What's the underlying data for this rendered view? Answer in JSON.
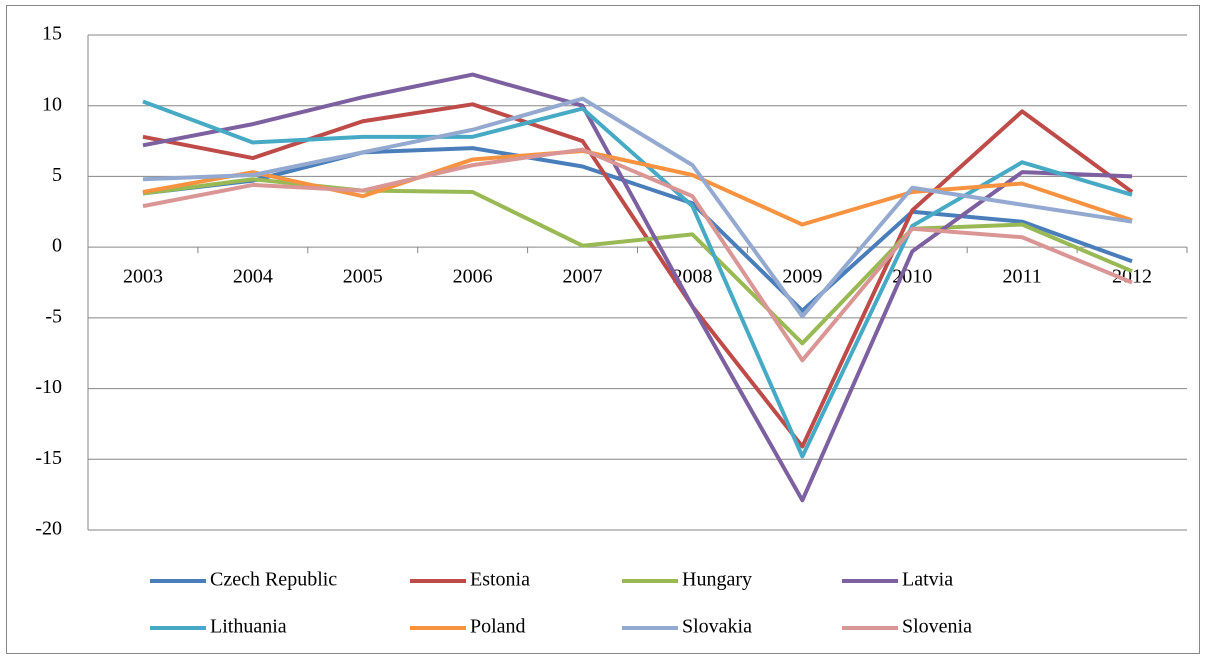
{
  "chart_data": {
    "type": "line",
    "categories": [
      "2003",
      "2004",
      "2005",
      "2006",
      "2007",
      "2008",
      "2009",
      "2010",
      "2011",
      "2012"
    ],
    "series": [
      {
        "name": "Czech Republic",
        "color": "#4a7ebb",
        "values": [
          3.8,
          4.7,
          6.7,
          7.0,
          5.7,
          3.1,
          -4.5,
          2.5,
          1.8,
          -1.0
        ]
      },
      {
        "name": "Estonia",
        "color": "#be4b48",
        "values": [
          7.8,
          6.3,
          8.9,
          10.1,
          7.5,
          -4.2,
          -14.1,
          2.6,
          9.6,
          3.9
        ]
      },
      {
        "name": "Hungary",
        "color": "#98b954",
        "values": [
          3.8,
          4.8,
          4.0,
          3.9,
          0.1,
          0.9,
          -6.8,
          1.3,
          1.6,
          -1.7
        ]
      },
      {
        "name": "Latvia",
        "color": "#7d60a0",
        "values": [
          7.2,
          8.7,
          10.6,
          12.2,
          10.0,
          -4.2,
          -17.9,
          -0.3,
          5.3,
          5.0
        ]
      },
      {
        "name": "Lithuania",
        "color": "#46aac5",
        "values": [
          10.3,
          7.4,
          7.8,
          7.8,
          9.8,
          2.9,
          -14.8,
          1.5,
          6.0,
          3.7
        ]
      },
      {
        "name": "Poland",
        "color": "#f69240",
        "values": [
          3.9,
          5.3,
          3.6,
          6.2,
          6.8,
          5.1,
          1.6,
          3.9,
          4.5,
          1.9
        ]
      },
      {
        "name": "Slovakia",
        "color": "#93a9d0",
        "values": [
          4.8,
          5.1,
          6.7,
          8.3,
          10.5,
          5.8,
          -4.9,
          4.2,
          3.0,
          1.8
        ]
      },
      {
        "name": "Slovenia",
        "color": "#d99694",
        "values": [
          2.9,
          4.4,
          4.0,
          5.8,
          6.9,
          3.6,
          -8.0,
          1.3,
          0.7,
          -2.5
        ]
      }
    ],
    "ylim": [
      -20,
      15
    ],
    "yticks": [
      -20,
      -15,
      -10,
      -5,
      0,
      5,
      10,
      15
    ],
    "grid": true,
    "legend": "bottom"
  }
}
